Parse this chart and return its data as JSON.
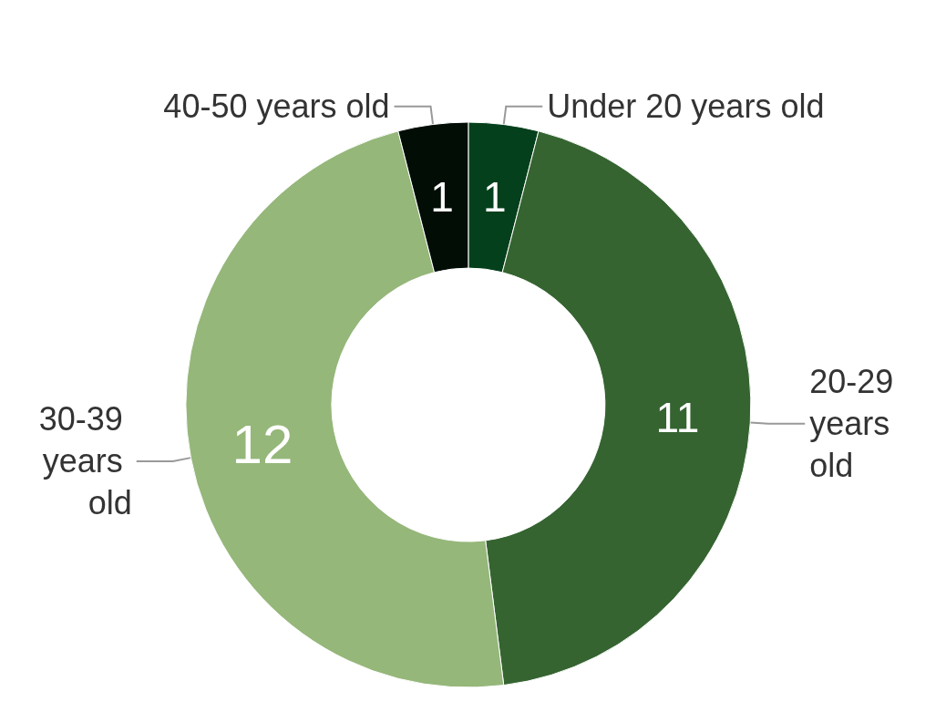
{
  "chart_data": {
    "type": "donut",
    "categories": [
      "Under 20 years old",
      "20-29 years old",
      "30-39 years old",
      "40-50 years old"
    ],
    "values": [
      1,
      11,
      12,
      1
    ],
    "colors": [
      "#04401c",
      "#356431",
      "#95b77a",
      "#020d06"
    ],
    "data_labels": true,
    "legend": false
  }
}
